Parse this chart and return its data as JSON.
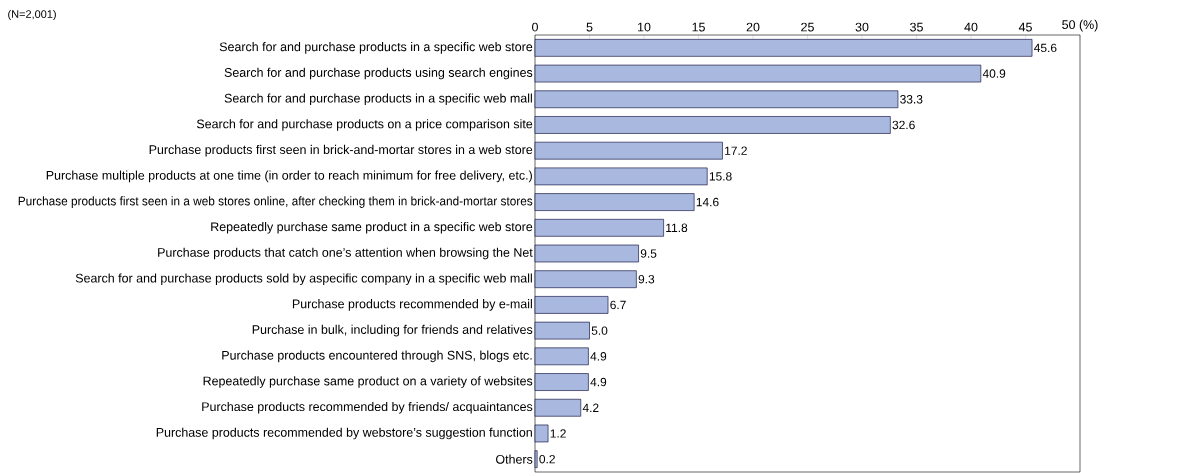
{
  "chart_data": {
    "type": "bar",
    "orientation": "horizontal",
    "annotations": [
      "(N=2,001)"
    ],
    "categories": [
      "Search for and purchase products in a specific web store",
      "Search for and purchase products using search engines",
      "Search for and purchase products in a specific web mall",
      "Search for and purchase products on a price comparison site",
      "Purchase products first seen in brick-and-mortar stores in a web store",
      "Purchase multiple products at one time (in order to reach minimum for free delivery, etc.)",
      "Purchase products first seen in a web stores online, after checking them in  brick-and-mortar stores",
      "Repeatedly purchase same product in a specific web store",
      "Purchase products that catch one’s attention when browsing the Net",
      "Search for and purchase products sold by aspecific company in a specific web mall",
      "Purchase products recommended by e-mail",
      "Purchase in bulk, including for friends and relatives",
      "Purchase products encountered through SNS, blogs etc.",
      "Repeatedly purchase same product on a variety of websites",
      "Purchase products recommended by friends/ acquaintances",
      "Purchase products recommended by webstore’s suggestion function",
      "Others"
    ],
    "values": [
      45.6,
      40.9,
      33.3,
      32.6,
      17.2,
      15.8,
      14.6,
      11.8,
      9.5,
      9.3,
      6.7,
      5.0,
      4.9,
      4.9,
      4.2,
      1.2,
      0.2
    ],
    "color": "#a9b8de",
    "value_labels": [
      "45.6",
      "40.9",
      "33.3",
      "32.6",
      "17.2",
      "15.8",
      "14.6",
      "11.8",
      "9.5",
      "9.3",
      "6.7",
      "5.0",
      "4.9",
      "4.9",
      "4.2",
      "1.2",
      "0.2"
    ],
    "grid": false,
    "xlim": [
      0,
      50
    ],
    "xticks": [
      0,
      5,
      10,
      15,
      20,
      25,
      30,
      35,
      40,
      45,
      {
        "value": 50,
        "label": "50 (%)"
      }
    ]
  }
}
